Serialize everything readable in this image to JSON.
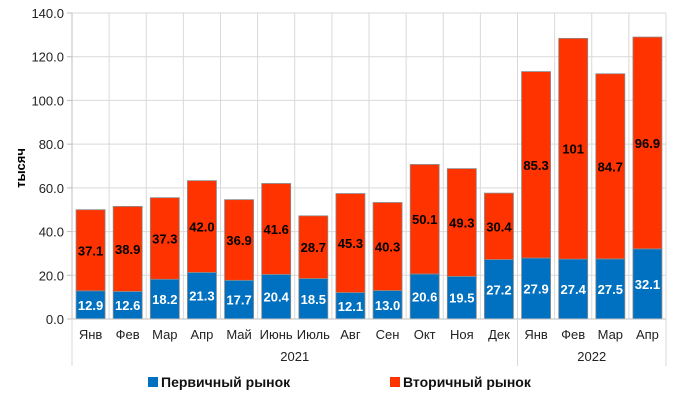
{
  "chart_data": {
    "type": "bar",
    "stacked": true,
    "ylabel": "тысяч",
    "ylim": [
      0,
      140
    ],
    "yticks": [
      "0.0",
      "20.0",
      "40.0",
      "60.0",
      "80.0",
      "100.0",
      "120.0",
      "140.0"
    ],
    "grid": true,
    "categories": [
      "Янв",
      "Фев",
      "Мар",
      "Апр",
      "Май",
      "Июнь",
      "Июль",
      "Авг",
      "Сен",
      "Окт",
      "Ноя",
      "Дек",
      "Янв",
      "Фев",
      "Мар",
      "Апр"
    ],
    "groups": [
      {
        "label": "2021",
        "count": 12
      },
      {
        "label": "2022",
        "count": 4
      }
    ],
    "series": [
      {
        "name": "Первичный рынок",
        "color": "#0070C0",
        "label_color": "#ffffff",
        "values": [
          12.9,
          12.6,
          18.2,
          21.3,
          17.7,
          20.4,
          18.5,
          12.1,
          13.0,
          20.6,
          19.5,
          27.2,
          27.9,
          27.4,
          27.5,
          32.1
        ],
        "labels": [
          "12.9",
          "12.6",
          "18.2",
          "21.3",
          "17.7",
          "20.4",
          "18.5",
          "12.1",
          "13.0",
          "20.6",
          "19.5",
          "27.2",
          "27.9",
          "27.4",
          "27.5",
          "32.1"
        ]
      },
      {
        "name": "Вторичный рынок",
        "color": "#FF3300",
        "label_color": "#000000",
        "values": [
          37.1,
          38.9,
          37.3,
          42.0,
          36.9,
          41.6,
          28.7,
          45.3,
          40.3,
          50.1,
          49.3,
          30.4,
          85.3,
          101,
          84.7,
          96.9
        ],
        "labels": [
          "37.1",
          "38.9",
          "37.3",
          "42.0",
          "36.9",
          "41.6",
          "28.7",
          "45.3",
          "40.3",
          "50.1",
          "49.3",
          "30.4",
          "85.3",
          "101",
          "84.7",
          "96.9"
        ]
      }
    ],
    "legend": "bottom"
  }
}
